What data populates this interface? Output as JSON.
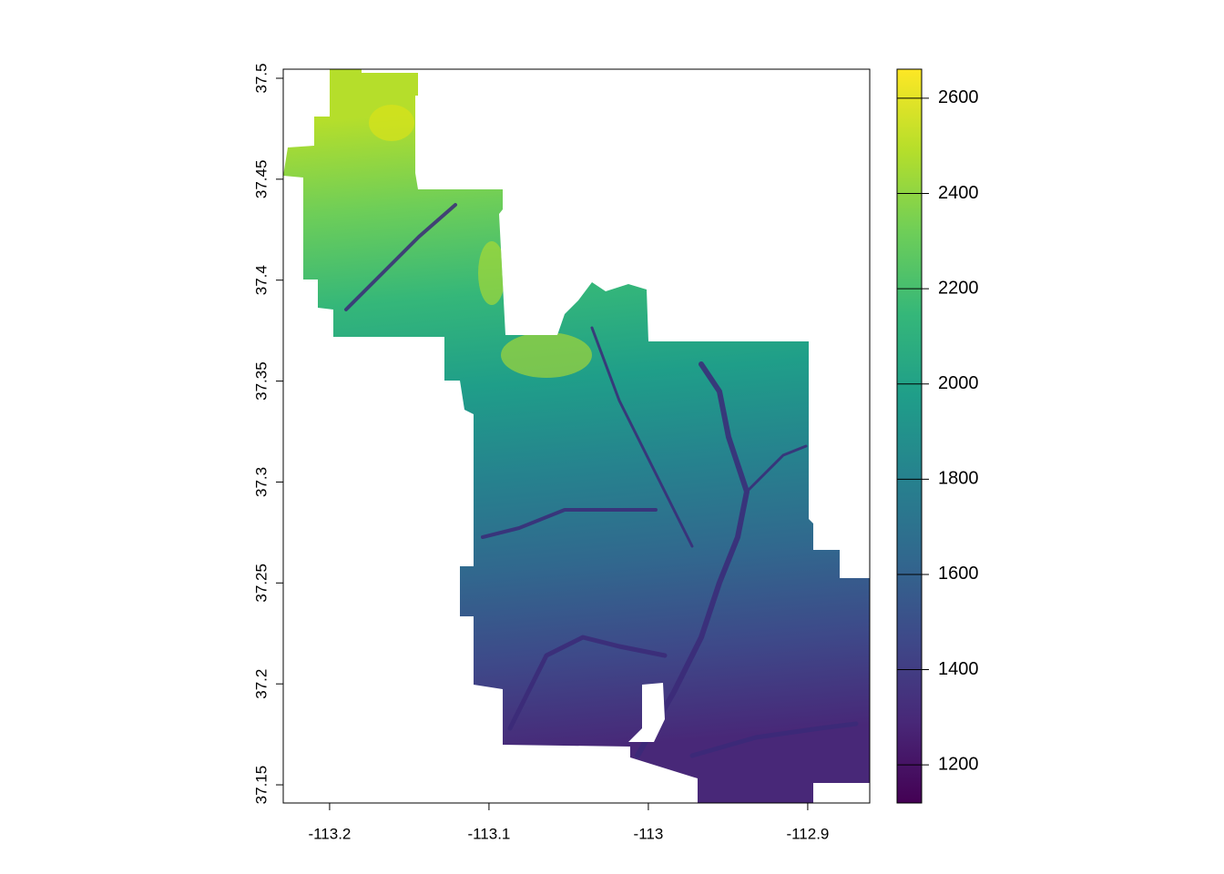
{
  "chart_data": {
    "type": "raster",
    "xlim": [
      -113.2291,
      -112.8611
    ],
    "ylim": [
      37.141,
      37.5045
    ],
    "xticks": [
      -113.2,
      -113.1,
      -113,
      -112.9
    ],
    "yticks": [
      37.15,
      37.2,
      37.25,
      37.3,
      37.35,
      37.4,
      37.45,
      37.5
    ],
    "colorbar": {
      "lim": [
        1120,
        2661
      ],
      "ticks": [
        1200,
        1400,
        1600,
        1800,
        2000,
        2200,
        2400,
        2600
      ],
      "colors": [
        "#440154",
        "#482878",
        "#3e4989",
        "#31688e",
        "#26828e",
        "#1f9e89",
        "#35b779",
        "#6ece58",
        "#b5de2b",
        "#fde725"
      ]
    }
  }
}
